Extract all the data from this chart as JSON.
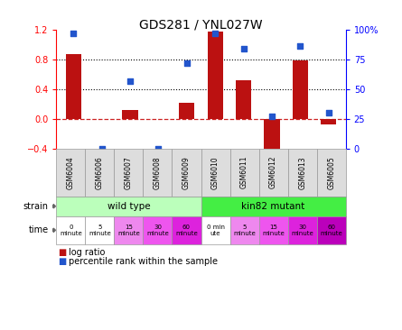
{
  "title": "GDS281 / YNL027W",
  "samples": [
    "GSM6004",
    "GSM6006",
    "GSM6007",
    "GSM6008",
    "GSM6009",
    "GSM6010",
    "GSM6011",
    "GSM6012",
    "GSM6013",
    "GSM6005"
  ],
  "log_ratio": [
    0.87,
    0.0,
    0.12,
    0.0,
    0.22,
    1.18,
    0.52,
    -0.47,
    0.79,
    -0.07
  ],
  "percentile": [
    97,
    0,
    57,
    0,
    72,
    97,
    84,
    27,
    86,
    30
  ],
  "bar_color": "#bb1111",
  "dot_color": "#2255cc",
  "ylim_left": [
    -0.4,
    1.2
  ],
  "ylim_right": [
    0,
    100
  ],
  "yticks_left": [
    -0.4,
    0.0,
    0.4,
    0.8,
    1.2
  ],
  "yticks_right": [
    0,
    25,
    50,
    75,
    100
  ],
  "ytick_labels_right": [
    "0",
    "25",
    "50",
    "75",
    "100%"
  ],
  "hline_y": [
    0.4,
    0.8
  ],
  "dashed_zero_color": "#cc2222",
  "strain_wt_label": "wild type",
  "strain_mut_label": "kin82 mutant",
  "strain_wt_color": "#bbffbb",
  "strain_mut_color": "#44ee44",
  "time_labels": [
    "0\nminute",
    "5\nminute",
    "15\nminute",
    "30\nminute",
    "60\nminute",
    "0 min\nute",
    "5\nminute",
    "15\nminute",
    "30\nminute",
    "60\nminute"
  ],
  "time_colors": [
    "#ffffff",
    "#ffffff",
    "#ee88ee",
    "#ee55ee",
    "#dd22dd",
    "#ffffff",
    "#ee88ee",
    "#ee55ee",
    "#dd22dd",
    "#bb00bb"
  ],
  "legend_log_ratio": "log ratio",
  "legend_percentile": "percentile rank within the sample",
  "xlabel_strain": "strain",
  "xlabel_time": "time"
}
